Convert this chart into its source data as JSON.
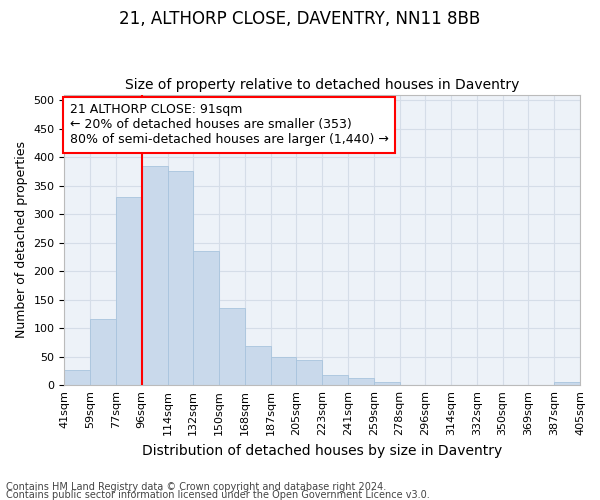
{
  "title": "21, ALTHORP CLOSE, DAVENTRY, NN11 8BB",
  "subtitle": "Size of property relative to detached houses in Daventry",
  "xlabel": "Distribution of detached houses by size in Daventry",
  "ylabel": "Number of detached properties",
  "footer_line1": "Contains HM Land Registry data © Crown copyright and database right 2024.",
  "footer_line2": "Contains public sector information licensed under the Open Government Licence v3.0.",
  "bin_labels": [
    "41sqm",
    "59sqm",
    "77sqm",
    "96sqm",
    "114sqm",
    "132sqm",
    "150sqm",
    "168sqm",
    "187sqm",
    "205sqm",
    "223sqm",
    "241sqm",
    "259sqm",
    "278sqm",
    "296sqm",
    "314sqm",
    "332sqm",
    "350sqm",
    "369sqm",
    "387sqm",
    "405sqm"
  ],
  "bar_values": [
    27,
    117,
    330,
    385,
    375,
    235,
    135,
    68,
    50,
    45,
    18,
    13,
    5,
    0,
    0,
    0,
    0,
    0,
    0,
    5
  ],
  "bar_color": "#c9d9eb",
  "bar_edgecolor": "#a8c4dd",
  "annotation_text": "21 ALTHORP CLOSE: 91sqm\n← 20% of detached houses are smaller (353)\n80% of semi-detached houses are larger (1,440) →",
  "annotation_box_color": "white",
  "annotation_box_edgecolor": "red",
  "vline_color": "red",
  "vline_x": 3,
  "ylim": [
    0,
    510
  ],
  "yticks": [
    0,
    50,
    100,
    150,
    200,
    250,
    300,
    350,
    400,
    450,
    500
  ],
  "grid_color": "#d5dde8",
  "bg_color": "#edf2f8",
  "title_fontsize": 12,
  "subtitle_fontsize": 10,
  "xlabel_fontsize": 10,
  "ylabel_fontsize": 9,
  "tick_fontsize": 8,
  "annotation_fontsize": 9,
  "footer_fontsize": 7
}
